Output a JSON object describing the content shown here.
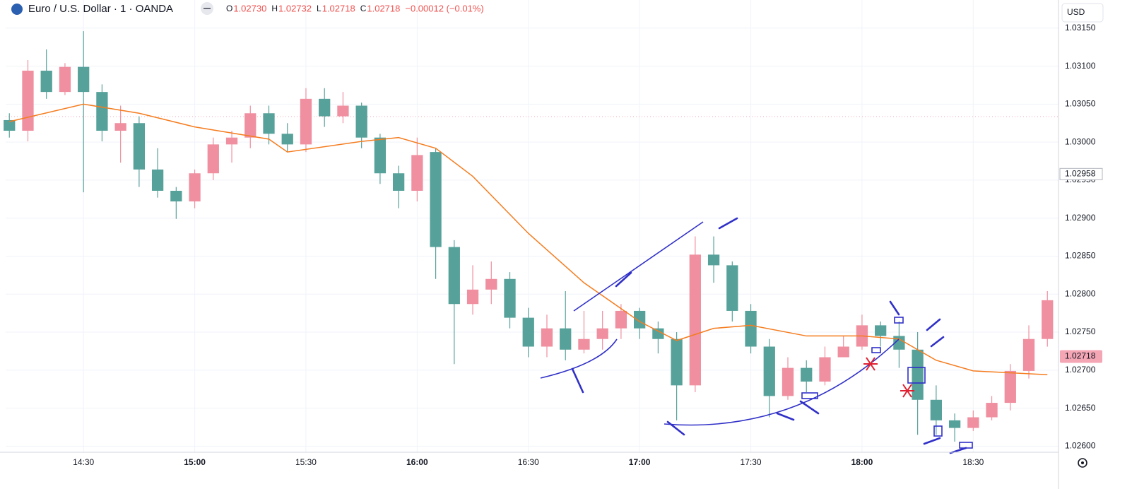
{
  "chart_data": {
    "type": "candlestick",
    "title": "Euro / U.S. Dollar · 1 · OANDA",
    "ohlc_legend": [
      {
        "label": "O",
        "value": "1.02730"
      },
      {
        "label": "H",
        "value": "1.02732"
      },
      {
        "label": "L",
        "value": "1.02718"
      },
      {
        "label": "C",
        "value": "1.02718"
      }
    ],
    "change": "−0.00012 (−0.01%)",
    "currency": "USD",
    "up_color": "#ef8fa0",
    "down_color": "#56a19a",
    "x": [
      "14:10",
      "14:15",
      "14:20",
      "14:25",
      "14:30",
      "14:35",
      "14:40",
      "14:45",
      "14:50",
      "14:55",
      "15:00",
      "15:05",
      "15:10",
      "15:15",
      "15:20",
      "15:25",
      "15:30",
      "15:35",
      "15:40",
      "15:45",
      "15:50",
      "15:55",
      "16:00",
      "16:05",
      "16:10",
      "16:15",
      "16:20",
      "16:25",
      "16:30",
      "16:35",
      "16:40",
      "16:45",
      "16:50",
      "16:55",
      "17:00",
      "17:05",
      "17:10",
      "17:15",
      "17:20",
      "17:25",
      "17:30",
      "17:35",
      "17:40",
      "17:45",
      "17:50",
      "17:55",
      "18:00",
      "18:05",
      "18:10",
      "18:15",
      "18:20",
      "18:25",
      "18:30",
      "18:35",
      "18:40",
      "18:45",
      "18:50"
    ],
    "open": [
      1.03029,
      1.03015,
      1.03094,
      1.03066,
      1.03099,
      1.03066,
      1.03015,
      1.03025,
      1.02964,
      1.02936,
      1.02922,
      1.02959,
      1.02997,
      1.03006,
      1.03038,
      1.03011,
      1.02997,
      1.03057,
      1.03034,
      1.03048,
      1.03006,
      1.02959,
      1.02936,
      1.02987,
      1.02862,
      1.02787,
      1.02806,
      1.0282,
      1.02769,
      1.02731,
      1.02755,
      1.02727,
      1.02741,
      1.02755,
      1.02778,
      1.02755,
      1.02741,
      1.0268,
      1.02852,
      1.02838,
      1.02778,
      1.02731,
      1.02666,
      1.02703,
      1.02685,
      1.02717,
      1.02731,
      1.02759,
      1.02745,
      1.02727,
      1.02661,
      1.02634,
      1.02624,
      1.02638,
      1.02657,
      1.02699,
      1.02741
    ],
    "high": [
      1.03038,
      1.03108,
      1.03122,
      1.03104,
      1.03146,
      1.03076,
      1.03048,
      1.03034,
      1.02992,
      1.02941,
      1.02964,
      1.03006,
      1.03015,
      1.03048,
      1.03048,
      1.03025,
      1.03071,
      1.03071,
      1.03066,
      1.03052,
      1.03011,
      1.02969,
      1.03006,
      1.02992,
      1.02871,
      1.02838,
      1.02843,
      1.02829,
      1.02782,
      1.02773,
      1.02804,
      1.02778,
      1.02778,
      1.02787,
      1.02782,
      1.02764,
      1.0275,
      1.02876,
      1.02876,
      1.02843,
      1.02787,
      1.02741,
      1.02717,
      1.02713,
      1.02731,
      1.02745,
      1.02773,
      1.02764,
      1.02764,
      1.0275,
      1.0268,
      1.02643,
      1.02647,
      1.02666,
      1.02708,
      1.02759,
      1.02804
    ],
    "low": [
      1.03006,
      1.03001,
      1.03057,
      1.03062,
      1.02934,
      1.03001,
      1.02973,
      1.02941,
      1.02927,
      1.02899,
      1.02913,
      1.0295,
      1.02973,
      1.02992,
      1.02997,
      1.02987,
      1.02987,
      1.0302,
      1.03025,
      1.02992,
      1.02945,
      1.02913,
      1.02922,
      1.0282,
      1.02708,
      1.02773,
      1.02787,
      1.02755,
      1.02717,
      1.02717,
      1.02713,
      1.02722,
      1.02727,
      1.02741,
      1.02741,
      1.02722,
      1.02634,
      1.02671,
      1.02815,
      1.02764,
      1.02722,
      1.02638,
      1.02661,
      1.02671,
      1.0268,
      1.02717,
      1.02727,
      1.02731,
      1.02703,
      1.02615,
      1.02615,
      1.02606,
      1.0262,
      1.02634,
      1.02647,
      1.02689,
      1.02731
    ],
    "close": [
      1.03015,
      1.03094,
      1.03066,
      1.03099,
      1.03066,
      1.03015,
      1.03025,
      1.02964,
      1.02936,
      1.02922,
      1.02959,
      1.02997,
      1.03006,
      1.03038,
      1.03011,
      1.02997,
      1.03057,
      1.03034,
      1.03048,
      1.03006,
      1.02959,
      1.02936,
      1.02983,
      1.02862,
      1.02787,
      1.02806,
      1.0282,
      1.02769,
      1.02731,
      1.02755,
      1.02727,
      1.02741,
      1.02755,
      1.02778,
      1.02755,
      1.02741,
      1.0268,
      1.02852,
      1.02838,
      1.02778,
      1.02731,
      1.02666,
      1.02703,
      1.02685,
      1.02717,
      1.02731,
      1.02759,
      1.02745,
      1.02727,
      1.02661,
      1.02634,
      1.02624,
      1.02638,
      1.02657,
      1.02699,
      1.02741,
      1.02792
    ],
    "ma": {
      "color": "#f57c1f",
      "x": [
        "14:10",
        "14:30",
        "14:45",
        "15:00",
        "15:20",
        "15:25",
        "15:45",
        "15:55",
        "16:05",
        "16:15",
        "16:30",
        "16:45",
        "17:00",
        "17:10",
        "17:20",
        "17:30",
        "17:45",
        "18:00",
        "18:10",
        "18:20",
        "18:30",
        "18:50"
      ],
      "values": [
        1.03027,
        1.0305,
        1.03038,
        1.0302,
        1.03004,
        1.02987,
        1.03001,
        1.03006,
        1.02992,
        1.02955,
        1.0288,
        1.02815,
        1.02764,
        1.02739,
        1.02755,
        1.02759,
        1.02745,
        1.02745,
        1.02741,
        1.02713,
        1.02699,
        1.02694
      ]
    },
    "xlim": [
      "14:09",
      "18:53"
    ],
    "xticks": [
      "14:30",
      "15:00",
      "15:30",
      "16:00",
      "16:30",
      "17:00",
      "17:30",
      "18:00",
      "18:30"
    ],
    "ylim": [
      1.02592,
      1.03187
    ],
    "yticks": [
      {
        "value": 1.026,
        "label": "1.02600"
      },
      {
        "value": 1.0265,
        "label": "1.02650"
      },
      {
        "value": 1.027,
        "label": "1.02700"
      },
      {
        "value": 1.0275,
        "label": "1.02750"
      },
      {
        "value": 1.028,
        "label": "1.02800"
      },
      {
        "value": 1.0285,
        "label": "1.02850"
      },
      {
        "value": 1.029,
        "label": "1.02900"
      },
      {
        "value": 1.0295,
        "label": "1.02950"
      },
      {
        "value": 1.03,
        "label": "1.03000"
      },
      {
        "value": 1.0305,
        "label": "1.03050"
      },
      {
        "value": 1.031,
        "label": "1.03100"
      },
      {
        "value": 1.0315,
        "label": "1.03150"
      }
    ],
    "last_price": 1.02718,
    "crosshair_price": 1.02958,
    "grid": true
  }
}
